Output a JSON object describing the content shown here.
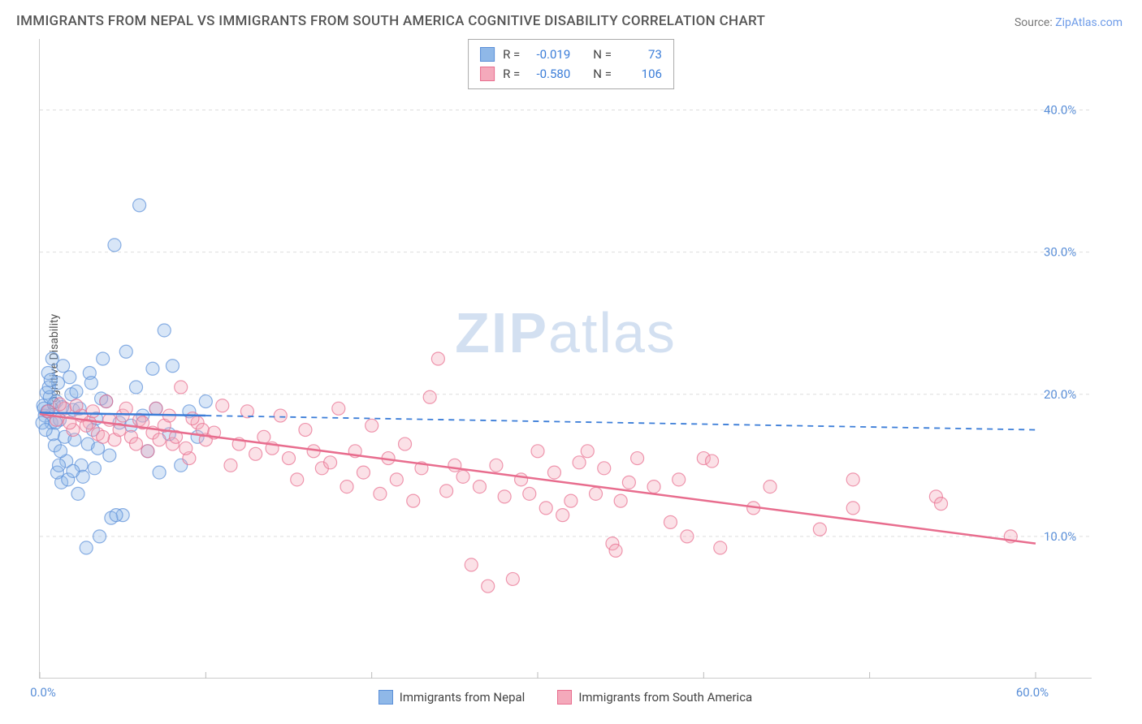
{
  "title": "IMMIGRANTS FROM NEPAL VS IMMIGRANTS FROM SOUTH AMERICA COGNITIVE DISABILITY CORRELATION CHART",
  "source_prefix": "Source: ",
  "source_link": "ZipAtlas.com",
  "y_axis_label": "Cognitive Disability",
  "watermark_bold": "ZIP",
  "watermark_rest": "atlas",
  "chart": {
    "type": "scatter",
    "xlim": [
      0,
      60
    ],
    "ylim": [
      0,
      45
    ],
    "x_ticks": [
      0,
      10,
      20,
      30,
      40,
      50,
      60
    ],
    "x_tick_labels": {
      "0": "0.0%",
      "60": "60.0%"
    },
    "y_ticks": [
      10,
      20,
      30,
      40
    ],
    "y_tick_labels": {
      "10": "10.0%",
      "20": "20.0%",
      "30": "30.0%",
      "40": "40.0%"
    },
    "background_color": "#ffffff",
    "grid_color": "#dddddd",
    "marker_radius": 8,
    "series": [
      {
        "name": "Immigrants from Nepal",
        "color_fill": "#8fb8e8",
        "color_stroke": "#5a8fd8",
        "R": "-0.019",
        "N": "73",
        "trend": {
          "x1": 0,
          "y1": 18.7,
          "x2": 10,
          "y2": 18.5,
          "ext_x2": 60,
          "ext_y2": 17.5,
          "color": "#3b7dd8"
        },
        "points": [
          [
            0.2,
            19.2
          ],
          [
            0.3,
            18.5
          ],
          [
            0.4,
            20.1
          ],
          [
            0.5,
            21.5
          ],
          [
            0.6,
            19.8
          ],
          [
            0.7,
            18.0
          ],
          [
            0.8,
            17.2
          ],
          [
            0.9,
            16.4
          ],
          [
            1.0,
            19.5
          ],
          [
            1.1,
            20.8
          ],
          [
            1.2,
            18.2
          ],
          [
            1.3,
            13.8
          ],
          [
            1.4,
            22.0
          ],
          [
            1.5,
            17.0
          ],
          [
            1.6,
            15.3
          ],
          [
            1.7,
            14.0
          ],
          [
            1.8,
            21.2
          ],
          [
            1.9,
            20.0
          ],
          [
            2.0,
            18.9
          ],
          [
            2.1,
            16.8
          ],
          [
            2.3,
            13.0
          ],
          [
            2.4,
            19.0
          ],
          [
            2.5,
            15.0
          ],
          [
            2.6,
            14.2
          ],
          [
            2.8,
            9.2
          ],
          [
            3.0,
            21.5
          ],
          [
            3.2,
            17.5
          ],
          [
            3.4,
            18.3
          ],
          [
            3.6,
            10.0
          ],
          [
            3.8,
            22.5
          ],
          [
            4.0,
            19.5
          ],
          [
            4.2,
            15.7
          ],
          [
            4.5,
            30.5
          ],
          [
            4.8,
            18.0
          ],
          [
            5.0,
            11.5
          ],
          [
            5.2,
            23.0
          ],
          [
            5.5,
            17.8
          ],
          [
            5.8,
            20.5
          ],
          [
            6.0,
            33.3
          ],
          [
            6.2,
            18.5
          ],
          [
            6.5,
            16.0
          ],
          [
            6.8,
            21.8
          ],
          [
            7.0,
            19.0
          ],
          [
            7.2,
            14.5
          ],
          [
            7.5,
            24.5
          ],
          [
            7.8,
            17.2
          ],
          [
            8.0,
            22.0
          ],
          [
            8.5,
            15.0
          ],
          [
            9.0,
            18.8
          ],
          [
            9.5,
            17.0
          ],
          [
            10.0,
            19.5
          ],
          [
            0.15,
            18.0
          ],
          [
            0.25,
            19.0
          ],
          [
            0.35,
            17.5
          ],
          [
            0.45,
            18.8
          ],
          [
            0.55,
            20.5
          ],
          [
            0.65,
            21.0
          ],
          [
            0.75,
            22.5
          ],
          [
            0.85,
            19.3
          ],
          [
            0.95,
            18.0
          ],
          [
            1.05,
            14.5
          ],
          [
            1.15,
            15.0
          ],
          [
            1.25,
            16.0
          ],
          [
            1.35,
            19.1
          ],
          [
            4.3,
            11.3
          ],
          [
            4.6,
            11.5
          ],
          [
            2.0,
            14.6
          ],
          [
            2.2,
            20.2
          ],
          [
            2.9,
            16.5
          ],
          [
            3.1,
            20.8
          ],
          [
            3.3,
            14.8
          ],
          [
            3.5,
            16.2
          ],
          [
            3.7,
            19.7
          ]
        ]
      },
      {
        "name": "Immigrants from South America",
        "color_fill": "#f4a9bb",
        "color_stroke": "#e86d8e",
        "R": "-0.580",
        "N": "106",
        "trend": {
          "x1": 0,
          "y1": 18.6,
          "x2": 60,
          "y2": 9.5,
          "color": "#e86d8e"
        },
        "points": [
          [
            0.5,
            18.8
          ],
          [
            1.0,
            18.2
          ],
          [
            1.5,
            19.0
          ],
          [
            2.0,
            17.5
          ],
          [
            2.5,
            18.5
          ],
          [
            3.0,
            18.0
          ],
          [
            3.5,
            17.2
          ],
          [
            4.0,
            19.5
          ],
          [
            4.5,
            16.8
          ],
          [
            5.0,
            18.5
          ],
          [
            5.5,
            17.0
          ],
          [
            6.0,
            18.2
          ],
          [
            6.5,
            16.0
          ],
          [
            7.0,
            19.0
          ],
          [
            7.5,
            17.8
          ],
          [
            8.0,
            16.5
          ],
          [
            8.5,
            20.5
          ],
          [
            9.0,
            15.5
          ],
          [
            9.5,
            18.0
          ],
          [
            10.0,
            16.8
          ],
          [
            10.5,
            17.3
          ],
          [
            11.0,
            19.2
          ],
          [
            11.5,
            15.0
          ],
          [
            12.0,
            16.5
          ],
          [
            12.5,
            18.8
          ],
          [
            13.0,
            15.8
          ],
          [
            13.5,
            17.0
          ],
          [
            14.0,
            16.2
          ],
          [
            14.5,
            18.5
          ],
          [
            15.0,
            15.5
          ],
          [
            15.5,
            14.0
          ],
          [
            16.0,
            17.5
          ],
          [
            16.5,
            16.0
          ],
          [
            17.0,
            14.8
          ],
          [
            17.5,
            15.2
          ],
          [
            18.0,
            19.0
          ],
          [
            18.5,
            13.5
          ],
          [
            19.0,
            16.0
          ],
          [
            19.5,
            14.5
          ],
          [
            20.0,
            17.8
          ],
          [
            20.5,
            13.0
          ],
          [
            21.0,
            15.5
          ],
          [
            21.5,
            14.0
          ],
          [
            22.0,
            16.5
          ],
          [
            22.5,
            12.5
          ],
          [
            23.0,
            14.8
          ],
          [
            23.5,
            19.8
          ],
          [
            24.0,
            22.5
          ],
          [
            24.5,
            13.2
          ],
          [
            25.0,
            15.0
          ],
          [
            25.5,
            14.2
          ],
          [
            26.0,
            8.0
          ],
          [
            26.5,
            13.5
          ],
          [
            27.0,
            6.5
          ],
          [
            27.5,
            15.0
          ],
          [
            28.0,
            12.8
          ],
          [
            28.5,
            7.0
          ],
          [
            29.0,
            14.0
          ],
          [
            29.5,
            13.0
          ],
          [
            30.0,
            16.0
          ],
          [
            30.5,
            12.0
          ],
          [
            31.0,
            14.5
          ],
          [
            31.5,
            11.5
          ],
          [
            33.0,
            16.0
          ],
          [
            33.5,
            13.0
          ],
          [
            34.0,
            14.8
          ],
          [
            34.5,
            9.5
          ],
          [
            34.7,
            9.0
          ],
          [
            35.0,
            12.5
          ],
          [
            36.0,
            15.5
          ],
          [
            37.0,
            13.5
          ],
          [
            38.0,
            11.0
          ],
          [
            38.5,
            14.0
          ],
          [
            40.0,
            15.5
          ],
          [
            40.5,
            15.3
          ],
          [
            41.0,
            9.2
          ],
          [
            43.0,
            12.0
          ],
          [
            47.0,
            10.5
          ],
          [
            49.0,
            14.0
          ],
          [
            49.0,
            12.0
          ],
          [
            54.0,
            12.8
          ],
          [
            54.3,
            12.3
          ],
          [
            58.5,
            10.0
          ],
          [
            1.2,
            19.3
          ],
          [
            1.8,
            18.0
          ],
          [
            2.2,
            19.2
          ],
          [
            2.8,
            17.8
          ],
          [
            3.2,
            18.8
          ],
          [
            3.8,
            17.0
          ],
          [
            4.2,
            18.2
          ],
          [
            4.8,
            17.5
          ],
          [
            5.2,
            19.0
          ],
          [
            5.8,
            16.5
          ],
          [
            6.2,
            18.0
          ],
          [
            6.8,
            17.3
          ],
          [
            7.2,
            16.8
          ],
          [
            7.8,
            18.5
          ],
          [
            8.2,
            17.0
          ],
          [
            8.8,
            16.2
          ],
          [
            9.2,
            18.3
          ],
          [
            9.8,
            17.5
          ],
          [
            32.0,
            12.5
          ],
          [
            32.5,
            15.2
          ],
          [
            35.5,
            13.8
          ],
          [
            39.0,
            10.0
          ],
          [
            44.0,
            13.5
          ]
        ]
      }
    ]
  },
  "stats_labels": {
    "R": "R =",
    "N": "N ="
  },
  "bottom_legend": [
    {
      "label": "Immigrants from Nepal",
      "fill": "#8fb8e8",
      "stroke": "#5a8fd8"
    },
    {
      "label": "Immigrants from South America",
      "fill": "#f4a9bb",
      "stroke": "#e86d8e"
    }
  ]
}
